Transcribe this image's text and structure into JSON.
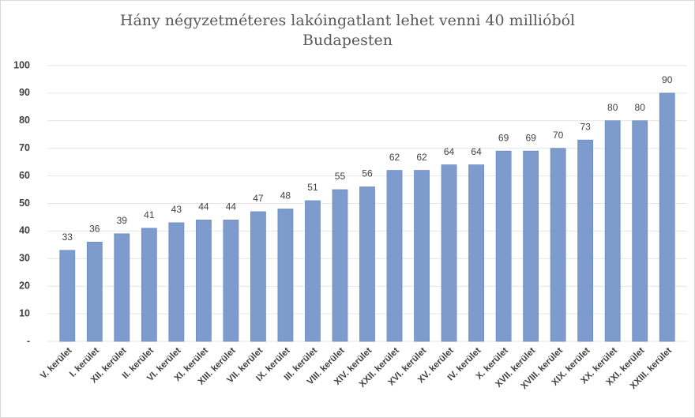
{
  "chart_data": {
    "type": "bar",
    "title": [
      "Hány négyzetméteres lakóingatlant lehet venni 40 millióból",
      "Budapesten"
    ],
    "categories": [
      "V. kerület",
      "I. kerület",
      "XII. kerület",
      "II. kerület",
      "VI. kerület",
      "XI. kerület",
      "XIII. kerület",
      "VII. kerület",
      "IX. kerület",
      "III. kerület",
      "VIII. kerület",
      "XIV. kerület",
      "XXII. kerület",
      "XVI. kerület",
      "XV. kerület",
      "IV. kerület",
      "X. kerület",
      "XVII. kerület",
      "XVIII. kerület",
      "XIX. kerület",
      "XX. kerület",
      "XXI. kerület",
      "XXIII. kerület"
    ],
    "values": [
      33,
      36,
      39,
      41,
      43,
      44,
      44,
      47,
      48,
      51,
      55,
      56,
      62,
      62,
      64,
      64,
      69,
      69,
      70,
      73,
      80,
      80,
      90
    ],
    "color": "#7d9ccd",
    "ylim": [
      0,
      100
    ],
    "yticks": [
      {
        "value": 0,
        "label": "-"
      },
      10,
      20,
      30,
      40,
      50,
      60,
      70,
      80,
      90,
      100
    ],
    "grid": true
  }
}
